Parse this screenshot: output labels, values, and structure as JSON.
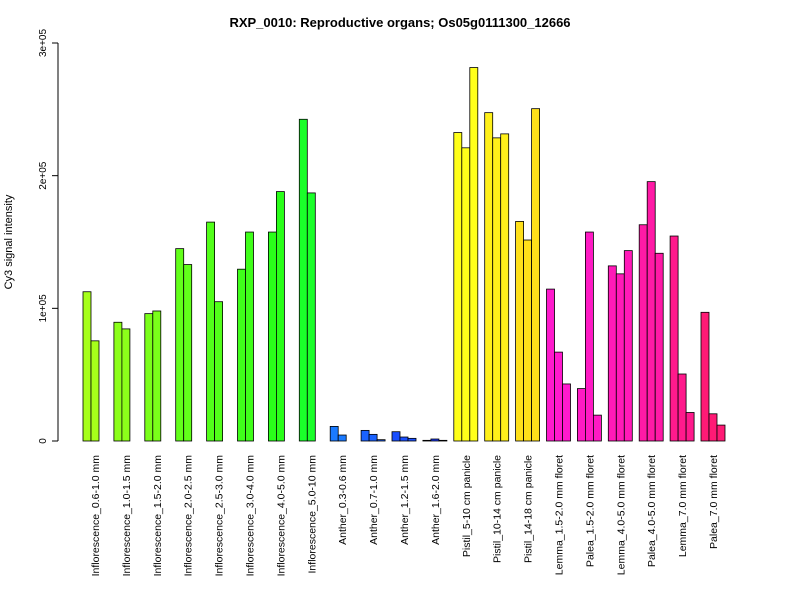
{
  "chart_data": {
    "type": "bar",
    "title": "RXP_0010: Reproductive organs; Os05g0111300_12666",
    "ylabel": "Cy3 signal intensity",
    "xlabel": "",
    "ylim": [
      0,
      300000
    ],
    "yticks": [
      0,
      100000,
      200000,
      300000
    ],
    "ytick_labels": [
      "0",
      "1e+05",
      "2e+05",
      "3e+05"
    ],
    "grid": false,
    "legend": "none",
    "groups": [
      {
        "label": "Inflorescence_0.6-1.0 mm",
        "color": "#a6ff1a",
        "values": [
          112500,
          75500
        ]
      },
      {
        "label": "Inflorescence_1.0-1.5 mm",
        "color": "#8cff1a",
        "values": [
          89500,
          84500
        ]
      },
      {
        "label": "Inflorescence_1.5-2.0 mm",
        "color": "#7aff1a",
        "values": [
          96000,
          98000
        ]
      },
      {
        "label": "Inflorescence_2.0-2.5 mm",
        "color": "#62ff1a",
        "values": [
          145000,
          133000
        ]
      },
      {
        "label": "Inflorescence_2.5-3.0 mm",
        "color": "#52ff1a",
        "values": [
          165000,
          105000
        ]
      },
      {
        "label": "Inflorescence_3.0-4.0 mm",
        "color": "#3fff1a",
        "values": [
          129500,
          157500
        ]
      },
      {
        "label": "Inflorescence_4.0-5.0 mm",
        "color": "#2aff1a",
        "values": [
          157500,
          188000
        ]
      },
      {
        "label": "Inflorescence_5.0-10 mm",
        "color": "#1aff2a",
        "values": [
          242500,
          187000
        ]
      },
      {
        "label": "Anther_0.3-0.6 mm",
        "color": "#1a7aff",
        "values": [
          11000,
          4500
        ]
      },
      {
        "label": "Anther_0.7-1.0 mm",
        "color": "#1a62ff",
        "values": [
          8000,
          5000,
          1000
        ]
      },
      {
        "label": "Anther_1.2-1.5 mm",
        "color": "#1a4fff",
        "values": [
          7000,
          3000,
          2000
        ]
      },
      {
        "label": "Anther_1.6-2.0 mm",
        "color": "#1a3aff",
        "values": [
          500,
          1500,
          500
        ]
      },
      {
        "label": "Pistil_5-10 cm panicle",
        "color": "#ffff1a",
        "values": [
          232500,
          221000,
          281500
        ]
      },
      {
        "label": "Pistil_10-14 cm panicle",
        "color": "#fff01a",
        "values": [
          247500,
          228500,
          231500
        ]
      },
      {
        "label": "Pistil_14-18 cm panicle",
        "color": "#ffe01a",
        "values": [
          165500,
          151500,
          250500
        ]
      },
      {
        "label": "Lemma_1.5-2.0 mm floret",
        "color": "#ff1acd",
        "values": [
          114500,
          67000,
          43000
        ]
      },
      {
        "label": "Palea_1.5-2.0 mm floret",
        "color": "#ff1ac4",
        "values": [
          39500,
          157500,
          19500
        ]
      },
      {
        "label": "Lemma_4.0-5.0 mm floret",
        "color": "#ff1ab8",
        "values": [
          132000,
          126000,
          143500
        ]
      },
      {
        "label": "Palea_4.0-5.0 mm floret",
        "color": "#ff1aa6",
        "values": [
          163000,
          195500,
          141500
        ]
      },
      {
        "label": "Lemma_7.0 mm floret",
        "color": "#ff1a8c",
        "values": [
          154500,
          50500,
          21500
        ]
      },
      {
        "label": "Palea_7.0 mm floret",
        "color": "#ff1a75",
        "values": [
          97000,
          20500,
          12000
        ]
      }
    ]
  }
}
